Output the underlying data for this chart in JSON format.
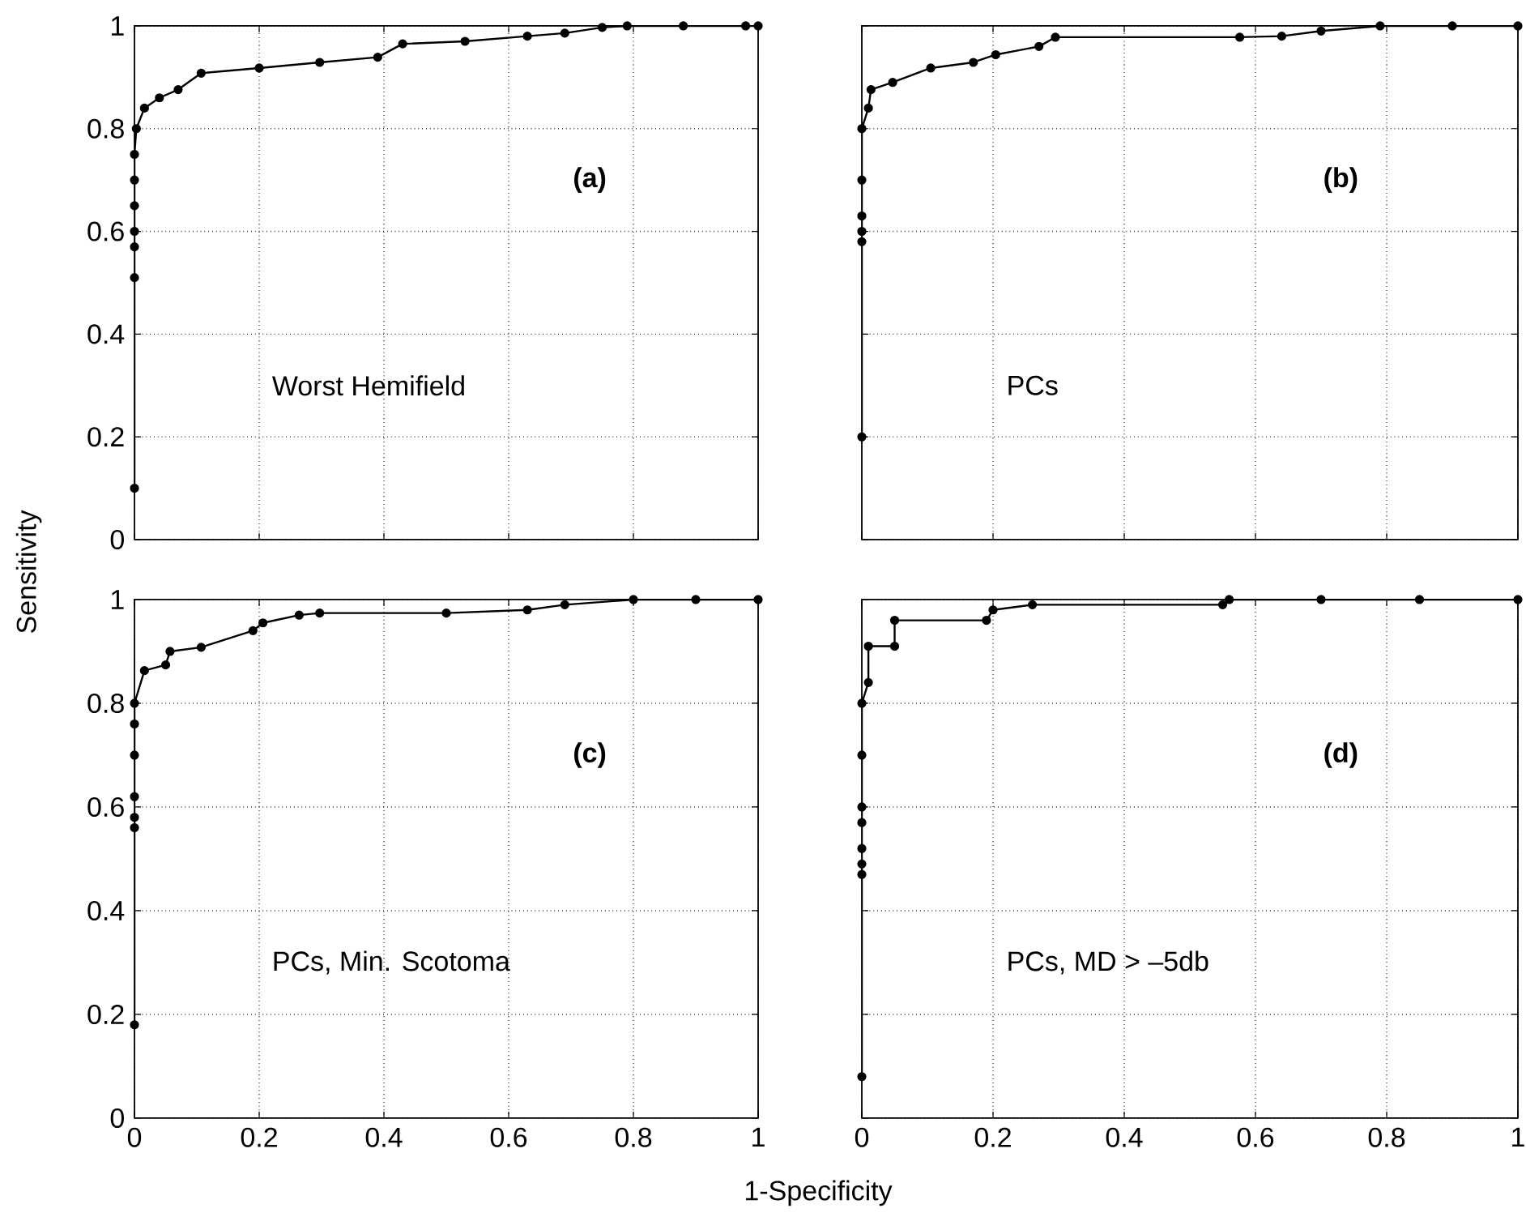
{
  "chart_data": [
    {
      "type": "line",
      "ylabel": "Sensitivity",
      "annotations": [
        "(a)",
        "Worst Hemifield"
      ],
      "tick_labels": "y",
      "xlim": [
        0,
        1
      ],
      "ylim": [
        0,
        1
      ],
      "xticks": [
        0,
        0.2,
        0.4,
        0.6,
        0.8,
        1
      ],
      "yticks": [
        0,
        0.2,
        0.4,
        0.6,
        0.8,
        1
      ],
      "grid": true,
      "marker": "circle",
      "line_style": "solid",
      "color": "#000000",
      "x": [
        0,
        0,
        0,
        0,
        0,
        0,
        0,
        0.003,
        0.016,
        0.04,
        0.07,
        0.107,
        0.2,
        0.297,
        0.39,
        0.43,
        0.53,
        0.63,
        0.69,
        0.75,
        0.79,
        0.88,
        0.98,
        1
      ],
      "values": [
        0.1,
        0.51,
        0.57,
        0.6,
        0.65,
        0.7,
        0.75,
        0.8,
        0.84,
        0.86,
        0.876,
        0.908,
        0.918,
        0.929,
        0.939,
        0.965,
        0.97,
        0.98,
        0.986,
        0.997,
        1,
        1,
        1,
        1
      ]
    },
    {
      "type": "line",
      "annotations": [
        "(b)",
        "PCs"
      ],
      "tick_labels": false,
      "xlim": [
        0,
        1
      ],
      "ylim": [
        0,
        1
      ],
      "xticks": [
        0,
        0.2,
        0.4,
        0.6,
        0.8,
        1
      ],
      "yticks": [
        0,
        0.2,
        0.4,
        0.6,
        0.8,
        1
      ],
      "grid": true,
      "marker": "circle",
      "line_style": "solid",
      "color": "#000000",
      "x": [
        0,
        0,
        0,
        0,
        0,
        0,
        0.01,
        0.014,
        0.047,
        0.105,
        0.17,
        0.204,
        0.27,
        0.295,
        0.576,
        0.64,
        0.7,
        0.79,
        0.9,
        1
      ],
      "values": [
        0.2,
        0.58,
        0.6,
        0.63,
        0.7,
        0.8,
        0.84,
        0.876,
        0.89,
        0.918,
        0.929,
        0.944,
        0.96,
        0.978,
        0.978,
        0.98,
        0.99,
        1,
        1,
        1
      ]
    },
    {
      "type": "line",
      "xlabel": "1-Specificity",
      "annotations": [
        "(c)",
        "PCs, Min. Scotoma"
      ],
      "xlim": [
        0,
        1
      ],
      "ylim": [
        0,
        1
      ],
      "xticks": [
        0,
        0.2,
        0.4,
        0.6,
        0.8,
        1
      ],
      "yticks": [
        0,
        0.2,
        0.4,
        0.6,
        0.8,
        1
      ],
      "grid": true,
      "marker": "circle",
      "line_style": "solid",
      "color": "#000000",
      "x": [
        0,
        0,
        0,
        0,
        0,
        0,
        0,
        0.016,
        0.05,
        0.057,
        0.107,
        0.19,
        0.206,
        0.264,
        0.297,
        0.5,
        0.63,
        0.69,
        0.8,
        0.9,
        1
      ],
      "values": [
        0.18,
        0.56,
        0.58,
        0.62,
        0.7,
        0.76,
        0.8,
        0.863,
        0.874,
        0.9,
        0.908,
        0.94,
        0.955,
        0.97,
        0.974,
        0.974,
        0.98,
        0.99,
        1,
        1,
        1
      ]
    },
    {
      "type": "line",
      "annotations": [
        "(d)",
        "PCs, MD > –5db"
      ],
      "tick_labels": "x",
      "xlim": [
        0,
        1
      ],
      "ylim": [
        0,
        1
      ],
      "xticks": [
        0,
        0.2,
        0.4,
        0.6,
        0.8,
        1
      ],
      "yticks": [
        0,
        0.2,
        0.4,
        0.6,
        0.8,
        1
      ],
      "grid": true,
      "marker": "circle",
      "line_style": "solid",
      "color": "#000000",
      "x": [
        0,
        0,
        0,
        0,
        0,
        0,
        0,
        0,
        0.01,
        0.01,
        0.05,
        0.05,
        0.19,
        0.2,
        0.26,
        0.55,
        0.56,
        0.7,
        0.85,
        1
      ],
      "values": [
        0.08,
        0.47,
        0.49,
        0.52,
        0.57,
        0.6,
        0.7,
        0.8,
        0.84,
        0.91,
        0.91,
        0.96,
        0.96,
        0.98,
        0.99,
        0.99,
        1,
        1,
        1,
        1
      ]
    }
  ]
}
